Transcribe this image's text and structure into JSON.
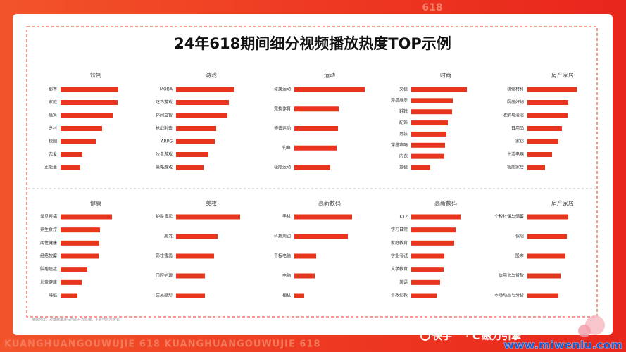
{
  "title": "24年618期间细分视频播放热度TOP示例",
  "footnote": "播放热度：对播放量进行同比开方处理，不影响实际排名",
  "watermark_top": "618",
  "watermark_bottom": "KUANGHUANGOUWUJIE    618    KUANGHUANGOUWUJIE    618",
  "logo_left": "快手",
  "logo_right": "磁力引擎",
  "site": "www.miwenlu.com",
  "chart_data": [
    {
      "type": "bar",
      "title": "短剧",
      "color": "#e8361e",
      "categories": [
        "都市",
        "家庭",
        "搞笑",
        "乡村",
        "校园",
        "恋爱",
        "正能量"
      ],
      "values": [
        82,
        81,
        74,
        59,
        50,
        31,
        28
      ]
    },
    {
      "type": "bar",
      "title": "游戏",
      "color": "#e8361e",
      "categories": [
        "MOBA",
        "吃鸡游戏",
        "休闲益智",
        "枪战射击",
        "ARPG",
        "沙盒游戏",
        "策略游戏"
      ],
      "values": [
        83,
        75,
        73,
        57,
        55,
        46,
        39
      ]
    },
    {
      "type": "bar",
      "title": "运动",
      "color": "#e8361e",
      "categories": [
        "球类运动",
        "竞技体育",
        "搏击运动",
        "钓鱼",
        "极限运动"
      ],
      "values": [
        100,
        63,
        62,
        60,
        51
      ]
    },
    {
      "type": "bar",
      "title": "时尚",
      "color": "#e8361e",
      "categories": [
        "女装",
        "穿搭展示",
        "鞋靴",
        "配饰",
        "男装",
        "穿搭攻略",
        "内衣",
        "童装"
      ],
      "values": [
        79,
        59,
        58,
        52,
        50,
        48,
        47,
        27
      ]
    },
    {
      "type": "bar",
      "title": "房产家居",
      "color": "#e8361e",
      "categories": [
        "装修材料",
        "厨房好物",
        "收纳与清洁",
        "日用品",
        "家纺",
        "生活电器",
        "智能家居"
      ],
      "values": [
        70,
        58,
        57,
        49,
        44,
        35,
        25
      ]
    },
    {
      "type": "bar",
      "title": "健康",
      "color": "#e8361e",
      "categories": [
        "常见疾病",
        "养生食疗",
        "两性健康",
        "经络按摩",
        "肿瘤癌症",
        "儿童健康",
        "睡眠"
      ],
      "values": [
        73,
        56,
        55,
        54,
        38,
        30,
        24
      ]
    },
    {
      "type": "bar",
      "title": "美妆",
      "color": "#e8361e",
      "categories": [
        "护肤售卖",
        "美发",
        "彩妆售卖",
        "口腔护理",
        "医美整形"
      ],
      "values": [
        91,
        59,
        54,
        41,
        41
      ]
    },
    {
      "type": "bar",
      "title": "高新数码",
      "color": "#e8361e",
      "categories": [
        "手机",
        "科技周边",
        "平板电脑",
        "电脑",
        "相机"
      ],
      "values": [
        82,
        76,
        31,
        29,
        14
      ]
    },
    {
      "type": "bar",
      "title": "高新数码",
      "color": "#e8361e",
      "categories": [
        "K12",
        "学习日常",
        "家庭教育",
        "学业考试",
        "大学教育",
        "英语",
        "早教幼教"
      ],
      "values": [
        70,
        63,
        61,
        47,
        46,
        41,
        36
      ]
    },
    {
      "type": "bar",
      "title": "房产家居",
      "color": "#e8361e",
      "categories": [
        "个税社保与储蓄",
        "保险",
        "股市",
        "信用卡与贷款",
        "市场动态与分析"
      ],
      "values": [
        58,
        56,
        54,
        47,
        44
      ]
    }
  ]
}
